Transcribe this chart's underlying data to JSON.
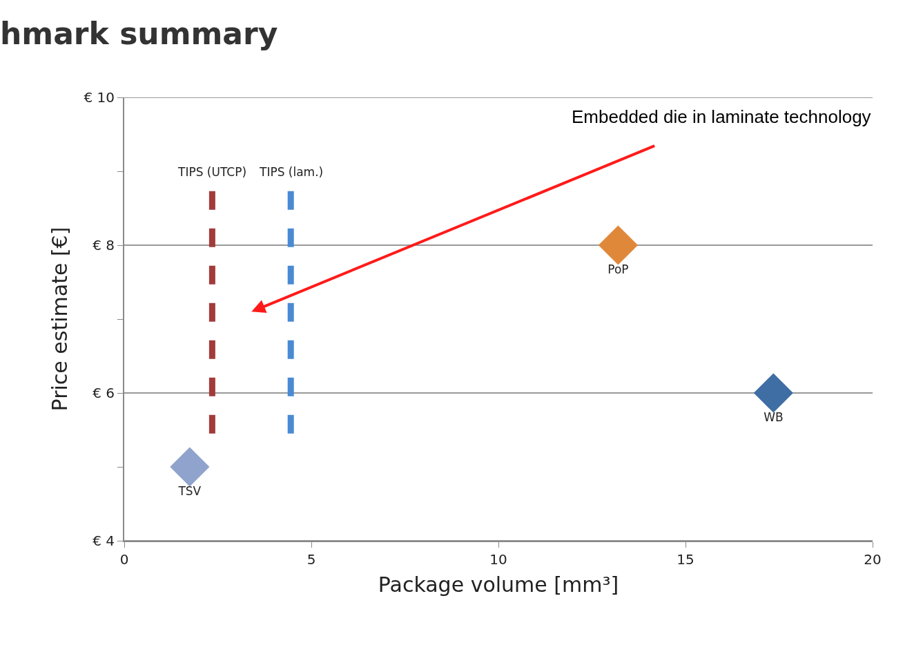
{
  "chart_data": {
    "type": "scatter",
    "title": "hmark summary",
    "xlabel": "Package volume [mm³]",
    "ylabel": "Price estimate [€]",
    "xlim": [
      0,
      20
    ],
    "xticks": [
      0,
      5,
      10,
      15,
      20
    ],
    "ylim": [
      4,
      10
    ],
    "yticks": [
      {
        "value": 4,
        "label": "€ 4"
      },
      {
        "value": 5,
        "label": null
      },
      {
        "value": 6,
        "label": "€ 6"
      },
      {
        "value": 7,
        "label": null
      },
      {
        "value": 8,
        "label": "€ 8"
      },
      {
        "value": 9,
        "label": null
      },
      {
        "value": 10,
        "label": "€ 10"
      }
    ],
    "grid": "y",
    "legend": false,
    "series": [
      {
        "name": "TIPS (UTCP)",
        "type": "line",
        "line_style": "dashed",
        "marker": "none",
        "color": "#a23b3b",
        "x": [
          2.35,
          2.35
        ],
        "values": [
          5.45,
          8.75
        ]
      },
      {
        "name": "TIPS (lam.)",
        "type": "line",
        "line_style": "dashed",
        "marker": "none",
        "color": "#4a8ad4",
        "x": [
          4.45,
          4.45
        ],
        "values": [
          5.45,
          8.75
        ]
      },
      {
        "name": "TSV",
        "marker": "diamond",
        "color": "#8fa3cc",
        "x": [
          1.75
        ],
        "values": [
          5.0
        ]
      },
      {
        "name": "PoP",
        "marker": "diamond",
        "color": "#e0883a",
        "x": [
          13.2
        ],
        "values": [
          8.0
        ]
      },
      {
        "name": "WB",
        "marker": "diamond",
        "color": "#3f6ea5",
        "x": [
          17.35
        ],
        "values": [
          6.0
        ]
      }
    ],
    "annotations": [
      "Embedded die in laminate technology"
    ]
  }
}
